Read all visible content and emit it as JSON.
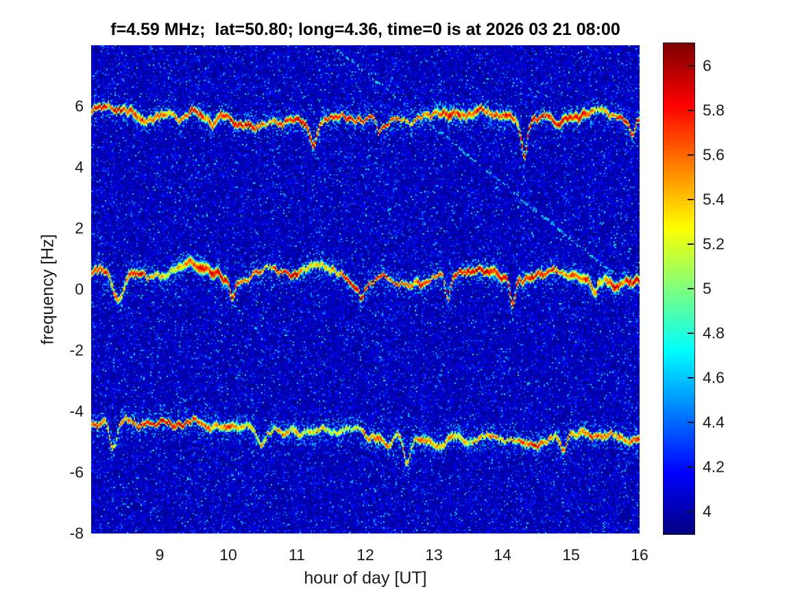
{
  "title": "f=4.59 MHz;  lat=50.80; long=4.36, time=0 is at 2026 03 21 08:00",
  "chart_data": {
    "type": "heatmap",
    "subtype": "doppler_spectrogram",
    "title": "f=4.59 MHz;  lat=50.80; long=4.36, time=0 is at 2026 03 21 08:00",
    "xlabel": "hour of day [UT]",
    "ylabel": "frequency [Hz]",
    "xlim": [
      8,
      16
    ],
    "ylim": [
      -8,
      8
    ],
    "xticks": [
      9,
      10,
      11,
      12,
      13,
      14,
      15,
      16
    ],
    "yticks": [
      6,
      4,
      2,
      0,
      -2,
      -4,
      -6,
      -8
    ],
    "grid": false,
    "colormap": "jet",
    "clim": [
      3.9,
      6.1
    ],
    "colorbar_ticks": [
      6,
      5.8,
      5.6,
      5.4,
      5.2,
      5,
      4.8,
      4.6,
      4.4,
      4.2,
      4
    ],
    "background_value": 4.0,
    "noise_floor": {
      "base": 3.92,
      "speckle_prob": 0.12,
      "bright_speckle_prob": 0.02
    },
    "bands": [
      {
        "name": "upper-doppler-trace",
        "freq_start": 5.78,
        "freq_end": 5.58,
        "peak": 5.85,
        "dips": [
          {
            "hour": 9.3,
            "depth": 0.5,
            "width": 0.08
          },
          {
            "hour": 11.25,
            "depth": 0.85,
            "width": 0.07
          },
          {
            "hour": 12.2,
            "depth": 0.45,
            "width": 0.05
          },
          {
            "hour": 14.32,
            "depth": 1.2,
            "width": 0.06
          },
          {
            "hour": 15.9,
            "depth": 0.45,
            "width": 0.05
          }
        ]
      },
      {
        "name": "center-doppler-trace",
        "freq_start": 0.55,
        "freq_end": 0.35,
        "peak": 5.9,
        "dips": [
          {
            "hour": 8.38,
            "depth": 1.05,
            "width": 0.12
          },
          {
            "hour": 10.05,
            "depth": 0.55,
            "width": 0.05
          },
          {
            "hour": 11.95,
            "depth": 0.5,
            "width": 0.05
          },
          {
            "hour": 13.2,
            "depth": 0.9,
            "width": 0.05
          },
          {
            "hour": 14.15,
            "depth": 0.8,
            "width": 0.05
          },
          {
            "hour": 15.35,
            "depth": 0.5,
            "width": 0.05
          }
        ]
      },
      {
        "name": "lower-doppler-trace",
        "freq_start": -4.45,
        "freq_end": -4.95,
        "peak": 5.75,
        "dips": [
          {
            "hour": 8.32,
            "depth": 0.75,
            "width": 0.08
          },
          {
            "hour": 10.5,
            "depth": 0.5,
            "width": 0.06
          },
          {
            "hour": 12.6,
            "depth": 0.8,
            "width": 0.06
          },
          {
            "hour": 14.9,
            "depth": 0.5,
            "width": 0.06
          }
        ]
      }
    ],
    "streaks": [
      {
        "name": "interference-streak",
        "start": {
          "hour": 11.55,
          "freq": 7.95
        },
        "end": {
          "hour": 15.6,
          "freq": 0.55
        },
        "value": 4.45,
        "density": 0.55
      }
    ],
    "seed": 1337
  }
}
